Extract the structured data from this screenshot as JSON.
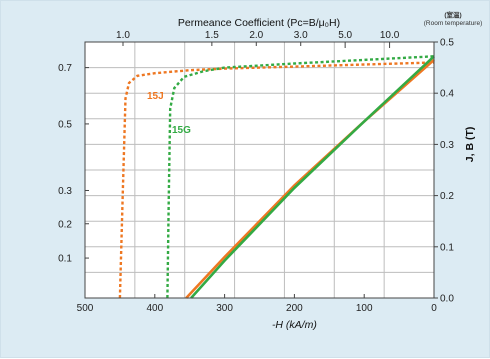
{
  "chart_data": {
    "type": "line",
    "title": "Permeance Coefficient (Pc=B/μ₀H)",
    "xlabel": "-H (kA/m)",
    "ylabel_right": "J, B (T)",
    "note_top_right": [
      "(室温)",
      "(Room temperature)"
    ],
    "x_axis": {
      "reversed": true,
      "xlim": [
        0,
        500
      ],
      "ticks": [
        500,
        400,
        300,
        200,
        100,
        0
      ]
    },
    "y_right": {
      "ylim": [
        0,
        0.5
      ],
      "ticks": [
        0.0,
        0.1,
        0.2,
        0.3,
        0.4,
        0.5
      ]
    },
    "y_left_ticks": [
      {
        "label": "0.7",
        "value": 0.7
      },
      {
        "label": "0.5",
        "value": 0.5
      },
      {
        "label": "0.3",
        "value": 0.3
      },
      {
        "label": "0.2",
        "value": 0.2
      },
      {
        "label": "0.1",
        "value": 0.1
      }
    ],
    "top_axis_ticks": [
      {
        "label": "1.0",
        "value": 1.0
      },
      {
        "label": "1.5",
        "value": 1.5
      },
      {
        "label": "2.0",
        "value": 2.0
      },
      {
        "label": "3.0",
        "value": 3.0
      },
      {
        "label": "5.0",
        "value": 5.0
      },
      {
        "label": "10.0",
        "value": 10.0
      }
    ],
    "grid": true,
    "series": [
      {
        "name": "15J",
        "color": "#ee7722",
        "J_curve": [
          [
            450,
            0.0
          ],
          [
            446,
            0.2
          ],
          [
            442,
            0.39
          ],
          [
            437,
            0.42
          ],
          [
            425,
            0.434
          ],
          [
            400,
            0.439
          ],
          [
            350,
            0.445
          ],
          [
            300,
            0.448
          ],
          [
            200,
            0.452
          ],
          [
            100,
            0.456
          ],
          [
            0,
            0.46
          ]
        ],
        "B_curve": [
          [
            355,
            0.0
          ],
          [
            300,
            0.08
          ],
          [
            200,
            0.22
          ],
          [
            100,
            0.345
          ],
          [
            0,
            0.465
          ]
        ]
      },
      {
        "name": "15G",
        "color": "#33aa44",
        "J_curve": [
          [
            382,
            0.0
          ],
          [
            380,
            0.2
          ],
          [
            378,
            0.37
          ],
          [
            372,
            0.41
          ],
          [
            358,
            0.432
          ],
          [
            330,
            0.443
          ],
          [
            300,
            0.45
          ],
          [
            200,
            0.458
          ],
          [
            100,
            0.465
          ],
          [
            0,
            0.472
          ]
        ],
        "B_curve": [
          [
            348,
            0.0
          ],
          [
            300,
            0.073
          ],
          [
            200,
            0.215
          ],
          [
            100,
            0.345
          ],
          [
            0,
            0.472
          ]
        ]
      }
    ]
  }
}
